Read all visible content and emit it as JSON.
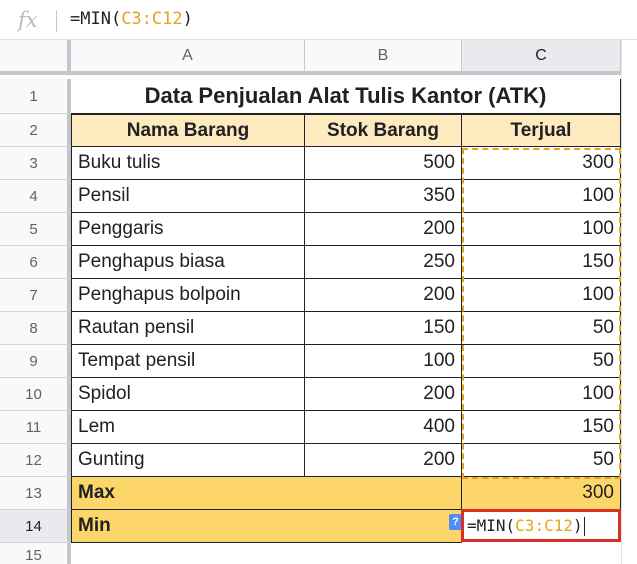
{
  "formula_bar": {
    "icon": "fx",
    "prefix": "=MIN(",
    "ref": "C3:C12",
    "suffix": ")"
  },
  "columns": [
    "A",
    "B",
    "C"
  ],
  "rows": [
    "1",
    "2",
    "3",
    "4",
    "5",
    "6",
    "7",
    "8",
    "9",
    "10",
    "11",
    "12",
    "13",
    "14",
    "15"
  ],
  "sheet": {
    "title": "Data Penjualan Alat Tulis Kantor (ATK)",
    "headers": {
      "name": "Nama Barang",
      "stock": "Stok Barang",
      "sold": "Terjual"
    },
    "items": [
      {
        "name": "Buku tulis",
        "stock": "500",
        "sold": "300"
      },
      {
        "name": "Pensil",
        "stock": "350",
        "sold": "100"
      },
      {
        "name": "Penggaris",
        "stock": "200",
        "sold": "100"
      },
      {
        "name": "Penghapus biasa",
        "stock": "250",
        "sold": "150"
      },
      {
        "name": "Penghapus bolpoin",
        "stock": "200",
        "sold": "100"
      },
      {
        "name": "Rautan pensil",
        "stock": "150",
        "sold": "50"
      },
      {
        "name": "Tempat pensil",
        "stock": "100",
        "sold": "50"
      },
      {
        "name": "Spidol",
        "stock": "200",
        "sold": "100"
      },
      {
        "name": "Lem",
        "stock": "400",
        "sold": "150"
      },
      {
        "name": "Gunting",
        "stock": "200",
        "sold": "50"
      }
    ],
    "max_label": "Max",
    "max_value": "300",
    "min_label": "Min"
  },
  "editing_cell": {
    "prefix": "=MIN(",
    "ref": "C3:C12",
    "suffix": ")",
    "help_badge": "?"
  },
  "colors": {
    "header_fill": "#fdebbf",
    "total_fill": "#fdd66a",
    "range_highlight": "#e8a317",
    "active_border": "#d93025"
  }
}
